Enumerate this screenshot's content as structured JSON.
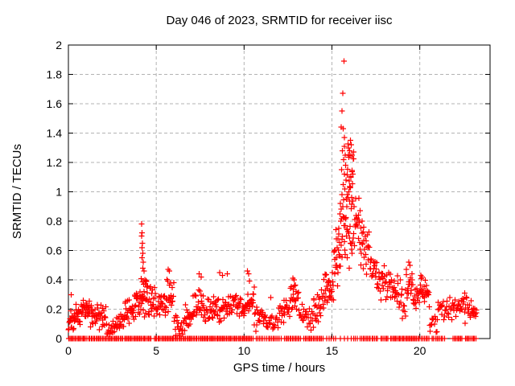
{
  "chart_data": {
    "type": "scatter",
    "title": "Day 046 of 2023, SRMTID for receiver iisc",
    "xlabel": "GPS time / hours",
    "ylabel": "SRMTID / TECUs",
    "xlim": [
      0,
      24
    ],
    "ylim": [
      0,
      2
    ],
    "xticks": [
      0,
      5,
      10,
      15,
      20
    ],
    "xtick_labels": [
      "0",
      "5",
      "10",
      "15",
      "20"
    ],
    "yticks": [
      0,
      0.2,
      0.4,
      0.6,
      0.8,
      1,
      1.2,
      1.4,
      1.6,
      1.8,
      2
    ],
    "ytick_labels": [
      "0",
      "0.2",
      "0.4",
      "0.6",
      "0.8",
      "1",
      "1.2",
      "1.4",
      "1.6",
      "1.8",
      "2"
    ],
    "grid": {
      "show": true,
      "style": "dashed",
      "color": "#b3b3b3"
    },
    "marker": {
      "shape": "plus",
      "color": "#ff0000",
      "size": 7
    },
    "background": "#ffffff",
    "border_color": "#000000",
    "seed": 2023046,
    "feature_points": [
      [
        0.15,
        0.3
      ],
      [
        4.17,
        0.78
      ],
      [
        4.19,
        0.72
      ],
      [
        4.16,
        0.7
      ],
      [
        4.22,
        0.65
      ],
      [
        4.18,
        0.62
      ],
      [
        4.24,
        0.58
      ],
      [
        4.2,
        0.55
      ],
      [
        4.26,
        0.52
      ],
      [
        4.23,
        0.48
      ],
      [
        4.3,
        0.46
      ],
      [
        5.68,
        0.47
      ],
      [
        5.75,
        0.46
      ],
      [
        7.45,
        0.44
      ],
      [
        7.55,
        0.42
      ],
      [
        8.62,
        0.45
      ],
      [
        8.78,
        0.43
      ],
      [
        9.05,
        0.44
      ],
      [
        10.18,
        0.46
      ],
      [
        10.25,
        0.44
      ],
      [
        11.52,
        0.28
      ],
      [
        12.78,
        0.41
      ],
      [
        12.85,
        0.4
      ],
      [
        15.68,
        1.89
      ],
      [
        15.62,
        1.67
      ],
      [
        15.58,
        1.55
      ],
      [
        15.52,
        1.44
      ],
      [
        15.65,
        1.43
      ],
      [
        15.7,
        1.37
      ],
      [
        15.72,
        1.31
      ],
      [
        15.6,
        1.28
      ],
      [
        15.75,
        1.25
      ],
      [
        15.66,
        1.22
      ],
      [
        15.78,
        1.18
      ],
      [
        15.55,
        1.15
      ],
      [
        15.71,
        1.12
      ],
      [
        15.8,
        1.08
      ],
      [
        15.63,
        1.05
      ],
      [
        15.74,
        1.02
      ],
      [
        15.57,
        0.98
      ],
      [
        15.82,
        0.95
      ],
      [
        15.48,
        0.92
      ],
      [
        15.85,
        0.9
      ],
      [
        15.45,
        0.85
      ],
      [
        15.5,
        0.8
      ],
      [
        15.4,
        0.75
      ],
      [
        15.35,
        0.68
      ],
      [
        15.3,
        0.62
      ],
      [
        15.25,
        0.55
      ],
      [
        15.2,
        0.5
      ],
      [
        16.05,
        1.35
      ],
      [
        16.1,
        1.32
      ],
      [
        15.95,
        1.3
      ],
      [
        16.0,
        1.28
      ],
      [
        16.15,
        1.25
      ],
      [
        16.72,
        0.8
      ],
      [
        16.8,
        0.76
      ],
      [
        19.38,
        0.52
      ],
      [
        19.45,
        0.5
      ],
      [
        20.05,
        0.43
      ],
      [
        20.12,
        0.42
      ],
      [
        22.55,
        0.31
      ]
    ],
    "noise_bands": [
      [
        0.0,
        0.35,
        18,
        0.03,
        0.22
      ],
      [
        0.35,
        0.75,
        20,
        0.08,
        0.26
      ],
      [
        0.75,
        1.25,
        26,
        0.12,
        0.3
      ],
      [
        1.25,
        1.75,
        22,
        0.06,
        0.24
      ],
      [
        1.75,
        2.15,
        16,
        0.04,
        0.26
      ],
      [
        2.15,
        2.75,
        20,
        0.01,
        0.14
      ],
      [
        2.75,
        3.2,
        18,
        0.03,
        0.18
      ],
      [
        3.2,
        3.75,
        24,
        0.08,
        0.3
      ],
      [
        3.75,
        4.1,
        18,
        0.1,
        0.38
      ],
      [
        4.1,
        4.5,
        24,
        0.12,
        0.45
      ],
      [
        4.5,
        5.0,
        24,
        0.1,
        0.42
      ],
      [
        5.0,
        5.55,
        24,
        0.08,
        0.32
      ],
      [
        5.55,
        6.0,
        20,
        0.1,
        0.45
      ],
      [
        6.0,
        6.65,
        22,
        0.01,
        0.18
      ],
      [
        6.65,
        7.1,
        18,
        0.05,
        0.25
      ],
      [
        7.1,
        7.7,
        24,
        0.1,
        0.42
      ],
      [
        7.7,
        8.4,
        28,
        0.08,
        0.32
      ],
      [
        8.4,
        9.2,
        30,
        0.08,
        0.32
      ],
      [
        9.2,
        10.0,
        30,
        0.1,
        0.34
      ],
      [
        10.0,
        10.65,
        28,
        0.05,
        0.4
      ],
      [
        10.65,
        11.25,
        20,
        0.04,
        0.22
      ],
      [
        11.25,
        11.95,
        20,
        0.02,
        0.18
      ],
      [
        11.95,
        12.6,
        24,
        0.08,
        0.28
      ],
      [
        12.6,
        13.1,
        22,
        0.12,
        0.38
      ],
      [
        13.1,
        13.95,
        28,
        0.04,
        0.24
      ],
      [
        13.95,
        14.55,
        24,
        0.1,
        0.34
      ],
      [
        14.55,
        15.1,
        28,
        0.2,
        0.5
      ],
      [
        15.1,
        15.5,
        20,
        0.3,
        0.8
      ],
      [
        15.5,
        15.85,
        20,
        0.45,
        1.05
      ],
      [
        15.85,
        16.25,
        28,
        0.85,
        1.35
      ],
      [
        15.85,
        16.25,
        14,
        0.45,
        0.85
      ],
      [
        16.25,
        16.65,
        20,
        0.55,
        1.0
      ],
      [
        16.65,
        17.15,
        22,
        0.42,
        0.78
      ],
      [
        17.15,
        17.65,
        22,
        0.33,
        0.62
      ],
      [
        17.65,
        18.3,
        26,
        0.25,
        0.5
      ],
      [
        18.3,
        19.0,
        26,
        0.2,
        0.45
      ],
      [
        19.0,
        19.2,
        6,
        0.1,
        0.3
      ],
      [
        19.2,
        19.6,
        20,
        0.25,
        0.52
      ],
      [
        19.6,
        19.95,
        14,
        0.15,
        0.35
      ],
      [
        19.95,
        20.55,
        26,
        0.2,
        0.43
      ],
      [
        20.55,
        21.05,
        14,
        0.03,
        0.2
      ],
      [
        21.05,
        21.5,
        14,
        0.1,
        0.3
      ],
      [
        21.5,
        22.3,
        24,
        0.12,
        0.3
      ],
      [
        22.3,
        23.25,
        32,
        0.1,
        0.3
      ]
    ],
    "zero_runs": [
      [
        0.02,
        1.05,
        16
      ],
      [
        1.15,
        2.0,
        13
      ],
      [
        2.1,
        3.1,
        15
      ],
      [
        3.2,
        4.7,
        22
      ],
      [
        4.9,
        6.2,
        20
      ],
      [
        6.3,
        7.4,
        16
      ],
      [
        7.5,
        9.3,
        28
      ],
      [
        9.4,
        10.5,
        17
      ],
      [
        10.7,
        11.15,
        6
      ],
      [
        11.3,
        12.1,
        10
      ],
      [
        12.3,
        13.2,
        13
      ],
      [
        13.4,
        14.5,
        15
      ],
      [
        14.7,
        15.2,
        5
      ],
      [
        15.5,
        15.9,
        3
      ],
      [
        16.1,
        16.45,
        4
      ],
      [
        16.6,
        17.6,
        13
      ],
      [
        17.8,
        18.2,
        6
      ],
      [
        18.35,
        19.95,
        24
      ],
      [
        20.1,
        20.5,
        6
      ],
      [
        20.7,
        21.4,
        9
      ],
      [
        21.9,
        22.4,
        8
      ],
      [
        22.6,
        23.2,
        9
      ]
    ]
  }
}
